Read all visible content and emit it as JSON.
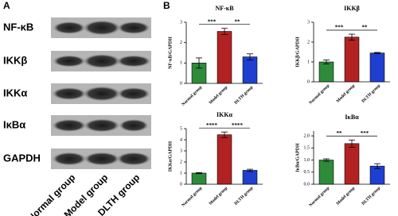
{
  "panel_labels": [
    "A",
    "B"
  ],
  "blot": {
    "proteins": [
      "NF-κB",
      "IKKβ",
      "IKKα",
      "IκBα",
      "GAPDH"
    ],
    "groups": [
      "Normal group",
      "Model group",
      "DLTH group"
    ]
  },
  "chart_data": [
    {
      "type": "bar",
      "title": "NF-κB",
      "y_label": "NF-κB/GAPDH",
      "categories": [
        "Normal group",
        "Model group",
        "DLTH group"
      ],
      "values": [
        1.0,
        2.55,
        1.3
      ],
      "errors": [
        0.25,
        0.15,
        0.15
      ],
      "colors": [
        "#2e8b3a",
        "#b22222",
        "#1f3fd0"
      ],
      "ylim": [
        0,
        3
      ],
      "yticks": [
        0,
        1,
        2,
        3
      ],
      "annotations": [
        "***",
        "**"
      ]
    },
    {
      "type": "bar",
      "title": "IKKβ",
      "y_label": "IKKβ/GAPDH",
      "categories": [
        "Normal group",
        "Model group",
        "DLTH group"
      ],
      "values": [
        1.0,
        2.25,
        1.45
      ],
      "errors": [
        0.1,
        0.15,
        0.03
      ],
      "colors": [
        "#2e8b3a",
        "#b22222",
        "#1f3fd0"
      ],
      "ylim": [
        0,
        3
      ],
      "yticks": [
        0,
        1,
        2,
        3
      ],
      "annotations": [
        "***",
        "**"
      ]
    },
    {
      "type": "bar",
      "title": "IKKα",
      "y_label": "IKKα/GAPDH",
      "categories": [
        "Normal group",
        "Model group",
        "DLTH group"
      ],
      "values": [
        1.0,
        4.45,
        1.25
      ],
      "errors": [
        0.05,
        0.25,
        0.1
      ],
      "colors": [
        "#2e8b3a",
        "#b22222",
        "#1f3fd0"
      ],
      "ylim": [
        0,
        5
      ],
      "yticks": [
        0,
        1,
        2,
        3,
        4,
        5
      ],
      "annotations": [
        "****",
        "****"
      ]
    },
    {
      "type": "bar",
      "title": "IκBα",
      "y_label": "IκBα/GAPDH",
      "categories": [
        "Normal group",
        "Model group",
        "DLTH group"
      ],
      "values": [
        1.0,
        1.68,
        0.75
      ],
      "errors": [
        0.05,
        0.15,
        0.1
      ],
      "colors": [
        "#2e8b3a",
        "#b22222",
        "#1f3fd0"
      ],
      "ylim": [
        0,
        2.2
      ],
      "yticks": [
        {
          "value": 0,
          "label": "0.0"
        },
        {
          "value": 0.5,
          "label": "0.5"
        },
        {
          "value": 1,
          "label": "1.0"
        },
        {
          "value": 1.5,
          "label": "1.5"
        },
        {
          "value": 2,
          "label": "2.0"
        }
      ],
      "annotations": [
        "**",
        "***"
      ]
    }
  ]
}
